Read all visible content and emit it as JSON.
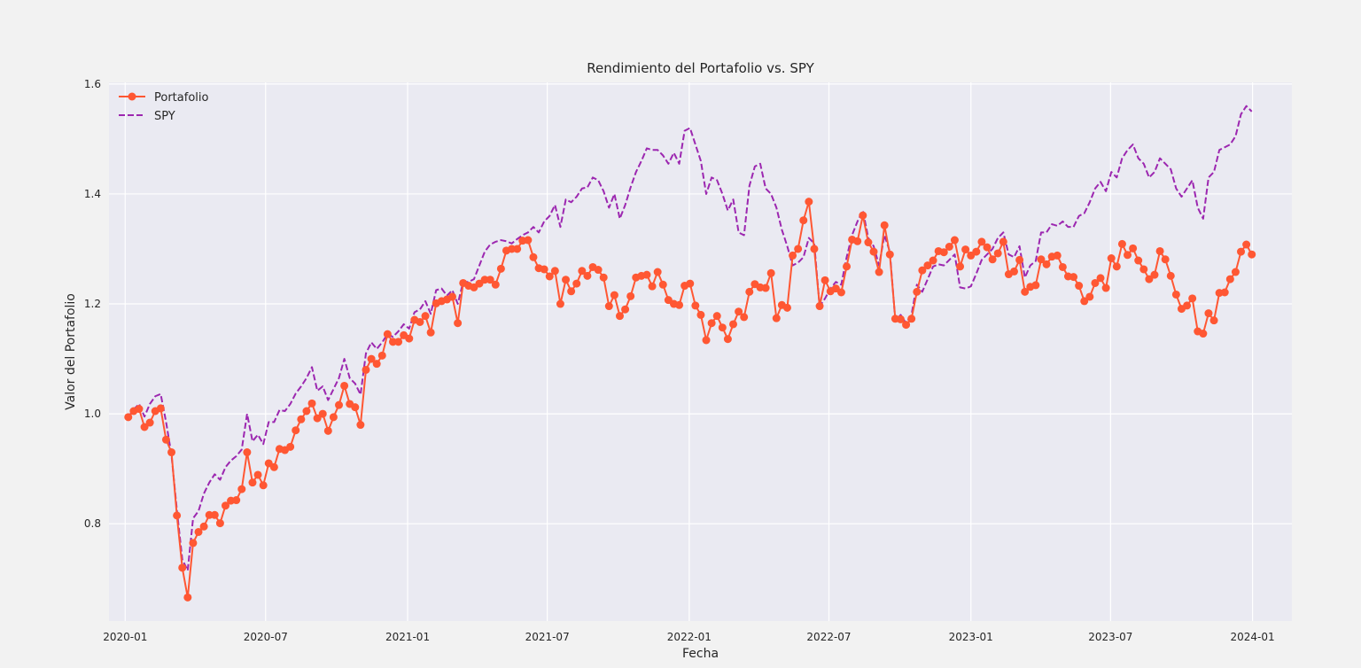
{
  "chart_data": {
    "type": "line",
    "title": "Rendimiento del Portafolio vs. SPY",
    "xlabel": "Fecha",
    "ylabel": "Valor del Portafolio",
    "xlim": [
      "2019-12-11",
      "2024-02-21"
    ],
    "ylim": [
      0.623,
      1.603
    ],
    "x_ticks": [
      "2020-01",
      "2020-07",
      "2021-01",
      "2021-07",
      "2022-01",
      "2022-07",
      "2023-01",
      "2023-07",
      "2024-01"
    ],
    "y_ticks": [
      0.8,
      1.0,
      1.2,
      1.4,
      1.6
    ],
    "grid": true,
    "legend_position": "top-left",
    "x": [
      "2020-01-05",
      "2020-01-12",
      "2020-01-19",
      "2020-01-26",
      "2020-02-02",
      "2020-02-09",
      "2020-02-16",
      "2020-02-23",
      "2020-03-01",
      "2020-03-08",
      "2020-03-15",
      "2020-03-22",
      "2020-03-29",
      "2020-04-05",
      "2020-04-12",
      "2020-04-19",
      "2020-04-26",
      "2020-05-03",
      "2020-05-10",
      "2020-05-17",
      "2020-05-24",
      "2020-05-31",
      "2020-06-07",
      "2020-06-14",
      "2020-06-21",
      "2020-06-28",
      "2020-07-05",
      "2020-07-12",
      "2020-07-19",
      "2020-07-26",
      "2020-08-02",
      "2020-08-09",
      "2020-08-16",
      "2020-08-23",
      "2020-08-30",
      "2020-09-06",
      "2020-09-13",
      "2020-09-20",
      "2020-09-27",
      "2020-10-04",
      "2020-10-11",
      "2020-10-18",
      "2020-10-25",
      "2020-11-01",
      "2020-11-08",
      "2020-11-15",
      "2020-11-22",
      "2020-11-29",
      "2020-12-06",
      "2020-12-13",
      "2020-12-20",
      "2020-12-27",
      "2021-01-03",
      "2021-01-10",
      "2021-01-17",
      "2021-01-24",
      "2021-01-31",
      "2021-02-07",
      "2021-02-14",
      "2021-02-21",
      "2021-02-28",
      "2021-03-07",
      "2021-03-14",
      "2021-03-21",
      "2021-03-28",
      "2021-04-04",
      "2021-04-11",
      "2021-04-18",
      "2021-04-25",
      "2021-05-02",
      "2021-05-09",
      "2021-05-16",
      "2021-05-23",
      "2021-05-30",
      "2021-06-06",
      "2021-06-13",
      "2021-06-20",
      "2021-06-27",
      "2021-07-04",
      "2021-07-11",
      "2021-07-18",
      "2021-07-25",
      "2021-08-01",
      "2021-08-08",
      "2021-08-15",
      "2021-08-22",
      "2021-08-29",
      "2021-09-05",
      "2021-09-12",
      "2021-09-19",
      "2021-09-26",
      "2021-10-03",
      "2021-10-10",
      "2021-10-17",
      "2021-10-24",
      "2021-10-31",
      "2021-11-07",
      "2021-11-14",
      "2021-11-21",
      "2021-11-28",
      "2021-12-05",
      "2021-12-12",
      "2021-12-19",
      "2021-12-26",
      "2022-01-02",
      "2022-01-09",
      "2022-01-16",
      "2022-01-23",
      "2022-01-30",
      "2022-02-06",
      "2022-02-13",
      "2022-02-20",
      "2022-02-27",
      "2022-03-06",
      "2022-03-13",
      "2022-03-20",
      "2022-03-27",
      "2022-04-03",
      "2022-04-10",
      "2022-04-17",
      "2022-04-24",
      "2022-05-01",
      "2022-05-08",
      "2022-05-15",
      "2022-05-22",
      "2022-05-29",
      "2022-06-05",
      "2022-06-12",
      "2022-06-19",
      "2022-06-26",
      "2022-07-03",
      "2022-07-10",
      "2022-07-17",
      "2022-07-24",
      "2022-07-31",
      "2022-08-07",
      "2022-08-14",
      "2022-08-21",
      "2022-08-28",
      "2022-09-04",
      "2022-09-11",
      "2022-09-18",
      "2022-09-25",
      "2022-10-02",
      "2022-10-09",
      "2022-10-16",
      "2022-10-23",
      "2022-10-30",
      "2022-11-06",
      "2022-11-13",
      "2022-11-20",
      "2022-11-27",
      "2022-12-04",
      "2022-12-11",
      "2022-12-18",
      "2022-12-25",
      "2023-01-01",
      "2023-01-08",
      "2023-01-15",
      "2023-01-22",
      "2023-01-29",
      "2023-02-05",
      "2023-02-12",
      "2023-02-19",
      "2023-02-26",
      "2023-03-05",
      "2023-03-12",
      "2023-03-19",
      "2023-03-26",
      "2023-04-02",
      "2023-04-09",
      "2023-04-16",
      "2023-04-23",
      "2023-04-30",
      "2023-05-07",
      "2023-05-14",
      "2023-05-21",
      "2023-05-28",
      "2023-06-04",
      "2023-06-11",
      "2023-06-18",
      "2023-06-25",
      "2023-07-02",
      "2023-07-09",
      "2023-07-16",
      "2023-07-23",
      "2023-07-30",
      "2023-08-06",
      "2023-08-13",
      "2023-08-20",
      "2023-08-27",
      "2023-09-03",
      "2023-09-10",
      "2023-09-17",
      "2023-09-24",
      "2023-10-01",
      "2023-10-08",
      "2023-10-15",
      "2023-10-22",
      "2023-10-29",
      "2023-11-05",
      "2023-11-12",
      "2023-11-19",
      "2023-11-26",
      "2023-12-03",
      "2023-12-10",
      "2023-12-17",
      "2023-12-24",
      "2023-12-31"
    ],
    "series": [
      {
        "name": "Portafolio",
        "color": "#ff5733",
        "style": "solid",
        "marker": "circle",
        "values": [
          0.994,
          1.005,
          1.009,
          0.976,
          0.984,
          1.005,
          1.01,
          0.953,
          0.93,
          0.815,
          0.72,
          0.666,
          0.765,
          0.785,
          0.795,
          0.816,
          0.816,
          0.801,
          0.833,
          0.842,
          0.843,
          0.863,
          0.93,
          0.875,
          0.889,
          0.87,
          0.91,
          0.903,
          0.936,
          0.934,
          0.94,
          0.97,
          0.99,
          1.005,
          1.019,
          0.992,
          1.0,
          0.969,
          0.994,
          1.016,
          1.051,
          1.018,
          1.012,
          0.98,
          1.08,
          1.1,
          1.091,
          1.106,
          1.145,
          1.131,
          1.131,
          1.143,
          1.137,
          1.171,
          1.167,
          1.178,
          1.148,
          1.201,
          1.205,
          1.208,
          1.213,
          1.165,
          1.238,
          1.233,
          1.23,
          1.237,
          1.244,
          1.244,
          1.235,
          1.264,
          1.297,
          1.3,
          1.3,
          1.315,
          1.316,
          1.285,
          1.265,
          1.263,
          1.25,
          1.26,
          1.2,
          1.244,
          1.223,
          1.237,
          1.26,
          1.251,
          1.267,
          1.262,
          1.248,
          1.196,
          1.216,
          1.178,
          1.19,
          1.214,
          1.248,
          1.251,
          1.253,
          1.232,
          1.258,
          1.235,
          1.207,
          1.2,
          1.198,
          1.233,
          1.237,
          1.197,
          1.18,
          1.134,
          1.165,
          1.178,
          1.157,
          1.136,
          1.163,
          1.186,
          1.176,
          1.222,
          1.236,
          1.23,
          1.229,
          1.256,
          1.174,
          1.198,
          1.193,
          1.288,
          1.3,
          1.352,
          1.386,
          1.3,
          1.196,
          1.243,
          1.223,
          1.228,
          1.221,
          1.268,
          1.317,
          1.314,
          1.361,
          1.312,
          1.295,
          1.258,
          1.343,
          1.29,
          1.173,
          1.172,
          1.162,
          1.173,
          1.222,
          1.261,
          1.27,
          1.279,
          1.296,
          1.294,
          1.304,
          1.316,
          1.268,
          1.299,
          1.288,
          1.295,
          1.313,
          1.303,
          1.281,
          1.292,
          1.313,
          1.254,
          1.259,
          1.28,
          1.222,
          1.231,
          1.234,
          1.281,
          1.272,
          1.286,
          1.288,
          1.267,
          1.25,
          1.249,
          1.233,
          1.205,
          1.213,
          1.238,
          1.247,
          1.229,
          1.283,
          1.268,
          1.309,
          1.289,
          1.301,
          1.279,
          1.263,
          1.245,
          1.253,
          1.296,
          1.281,
          1.251,
          1.217,
          1.191,
          1.197,
          1.21,
          1.15,
          1.146,
          1.183,
          1.17,
          1.22,
          1.221,
          1.245,
          1.258,
          1.295,
          1.308,
          1.29
        ]
      },
      {
        "name": "SPY",
        "color": "#9c27b0",
        "style": "dashed",
        "values": [
          0.994,
          1.008,
          1.018,
          0.995,
          1.018,
          1.032,
          1.036,
          0.985,
          0.925,
          0.825,
          0.735,
          0.715,
          0.81,
          0.823,
          0.855,
          0.875,
          0.89,
          0.88,
          0.903,
          0.915,
          0.923,
          0.935,
          1.0,
          0.95,
          0.962,
          0.945,
          0.985,
          0.985,
          1.007,
          1.005,
          1.018,
          1.037,
          1.05,
          1.065,
          1.085,
          1.042,
          1.05,
          1.025,
          1.045,
          1.065,
          1.1,
          1.065,
          1.055,
          1.035,
          1.11,
          1.13,
          1.118,
          1.13,
          1.145,
          1.14,
          1.15,
          1.163,
          1.155,
          1.185,
          1.19,
          1.205,
          1.182,
          1.225,
          1.228,
          1.215,
          1.225,
          1.2,
          1.24,
          1.24,
          1.245,
          1.27,
          1.295,
          1.308,
          1.313,
          1.316,
          1.314,
          1.31,
          1.318,
          1.325,
          1.33,
          1.34,
          1.33,
          1.35,
          1.36,
          1.38,
          1.34,
          1.39,
          1.385,
          1.395,
          1.41,
          1.412,
          1.43,
          1.425,
          1.405,
          1.375,
          1.4,
          1.355,
          1.38,
          1.412,
          1.44,
          1.46,
          1.483,
          1.48,
          1.48,
          1.47,
          1.455,
          1.475,
          1.455,
          1.515,
          1.52,
          1.49,
          1.46,
          1.4,
          1.43,
          1.425,
          1.4,
          1.37,
          1.39,
          1.33,
          1.325,
          1.415,
          1.45,
          1.455,
          1.41,
          1.4,
          1.375,
          1.335,
          1.305,
          1.27,
          1.275,
          1.285,
          1.32,
          1.31,
          1.195,
          1.21,
          1.228,
          1.24,
          1.235,
          1.285,
          1.325,
          1.35,
          1.37,
          1.32,
          1.305,
          1.27,
          1.325,
          1.295,
          1.17,
          1.18,
          1.165,
          1.18,
          1.235,
          1.222,
          1.245,
          1.268,
          1.272,
          1.27,
          1.28,
          1.29,
          1.23,
          1.228,
          1.232,
          1.255,
          1.28,
          1.29,
          1.3,
          1.32,
          1.33,
          1.29,
          1.285,
          1.305,
          1.248,
          1.27,
          1.278,
          1.33,
          1.33,
          1.345,
          1.342,
          1.35,
          1.34,
          1.34,
          1.36,
          1.365,
          1.385,
          1.41,
          1.422,
          1.405,
          1.44,
          1.43,
          1.465,
          1.48,
          1.49,
          1.465,
          1.455,
          1.43,
          1.44,
          1.465,
          1.455,
          1.445,
          1.41,
          1.395,
          1.41,
          1.425,
          1.375,
          1.355,
          1.43,
          1.44,
          1.48,
          1.485,
          1.49,
          1.505,
          1.545,
          1.56,
          1.55
        ]
      }
    ]
  }
}
